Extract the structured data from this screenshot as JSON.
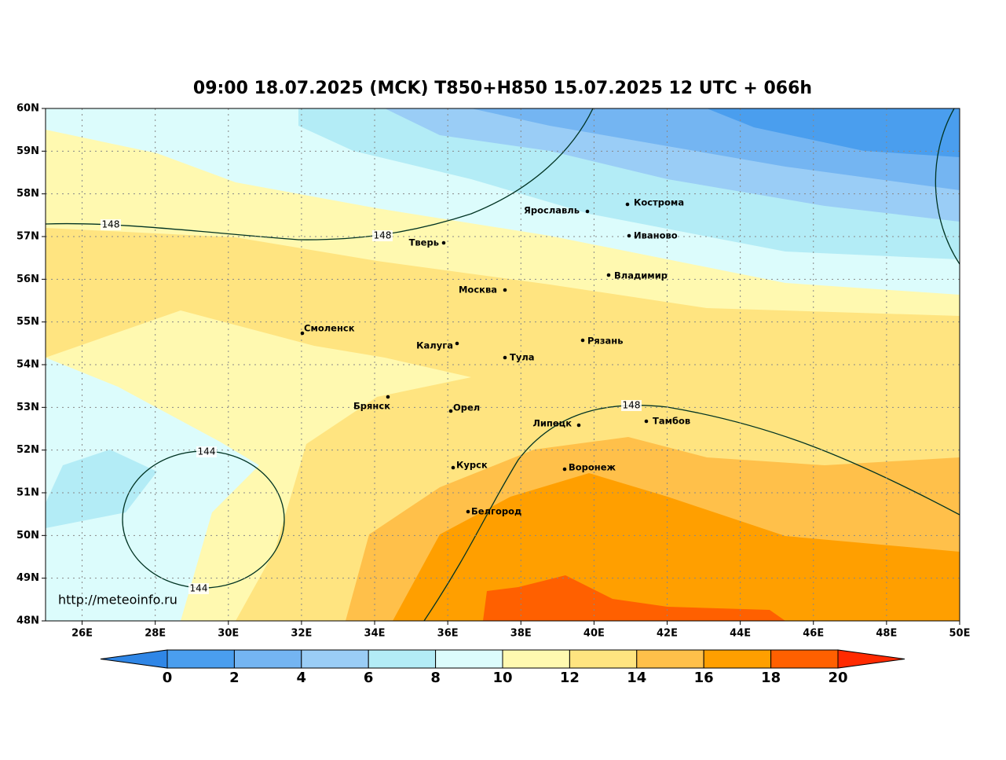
{
  "title": "09:00 18.07.2025 (MCK) T850+H850 15.07.2025 12 UTC + 066h",
  "lat_labels": [
    "60N",
    "59N",
    "58N",
    "57N",
    "56N",
    "55N",
    "54N",
    "53N",
    "52N",
    "51N",
    "50N",
    "49N",
    "48N"
  ],
  "lon_labels": [
    "26E",
    "28E",
    "30E",
    "32E",
    "34E",
    "36E",
    "38E",
    "40E",
    "42E",
    "44E",
    "46E",
    "48E",
    "50E"
  ],
  "cities": [
    "Ярославль",
    "Кострома",
    "Иваново",
    "Тверь",
    "Владимир",
    "Москва",
    "Смоленск",
    "Калуга",
    "Рязань",
    "Тула",
    "Брянск",
    "Орел",
    "Липецк",
    "Тамбов",
    "Курск",
    "Воронеж",
    "Белгород"
  ],
  "contour_labels": [
    148,
    148,
    148,
    144,
    144
  ],
  "colorbar_ticks": [
    0,
    2,
    4,
    6,
    8,
    10,
    12,
    14,
    16,
    18,
    20
  ],
  "url": "http://meteoinfo.ru"
}
